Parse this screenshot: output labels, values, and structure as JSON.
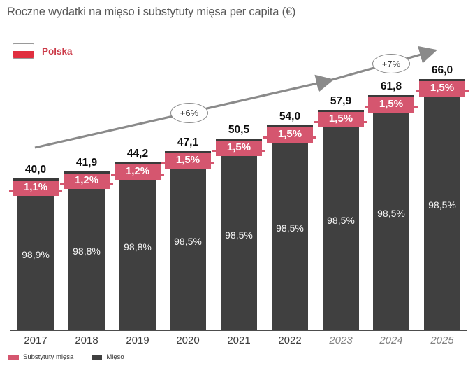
{
  "title": "Roczne wydatki na mięso i substytuty mięsa per capita (€)",
  "country": {
    "label": "Polska"
  },
  "legend": [
    {
      "label": "Substytuty mięsa",
      "color": "#d5566f"
    },
    {
      "label": "Mięso",
      "color": "#404040"
    }
  ],
  "colors": {
    "bar_meat": "#404040",
    "bar_substitutes": "#d5566f",
    "flag_red": "#e02f3f",
    "country_label_red": "#cb3a48",
    "title_gray": "#595959",
    "arrow_gray": "#8a8a8a",
    "forecast_label_gray": "#7f7f7f"
  },
  "chart_data": {
    "type": "bar",
    "stacked": true,
    "title": "Roczne wydatki na mięso i substytuty mięsa per capita (€)",
    "unit": "€",
    "categories": [
      "2017",
      "2018",
      "2019",
      "2020",
      "2021",
      "2022",
      "2023",
      "2024",
      "2025"
    ],
    "forecast": [
      "2023",
      "2024",
      "2025"
    ],
    "totals": [
      40.0,
      41.9,
      44.2,
      47.1,
      50.5,
      54.0,
      57.9,
      61.8,
      66.0
    ],
    "total_labels": [
      "40,0",
      "41,9",
      "44,2",
      "47,1",
      "50,5",
      "54,0",
      "57,9",
      "61,8",
      "66,0"
    ],
    "series": [
      {
        "name": "Mięso",
        "values_pct": [
          98.9,
          98.8,
          98.8,
          98.5,
          98.5,
          98.5,
          98.5,
          98.5,
          98.5
        ],
        "labels": [
          "98,9%",
          "98,8%",
          "98,8%",
          "98,5%",
          "98,5%",
          "98,5%",
          "98,5%",
          "98,5%",
          "98,5%"
        ]
      },
      {
        "name": "Substytuty mięsa",
        "values_pct": [
          1.1,
          1.2,
          1.2,
          1.5,
          1.5,
          1.5,
          1.5,
          1.5,
          1.5
        ],
        "labels": [
          "1,1%",
          "1,2%",
          "1,2%",
          "1,5%",
          "1,5%",
          "1,5%",
          "1,5%",
          "1,5%",
          "1,5%"
        ]
      }
    ],
    "annotations": [
      {
        "text": "+6%"
      },
      {
        "text": "+7%"
      }
    ],
    "value_axis": {
      "visible": false,
      "min": 0
    },
    "legend_position": "bottom-left"
  }
}
